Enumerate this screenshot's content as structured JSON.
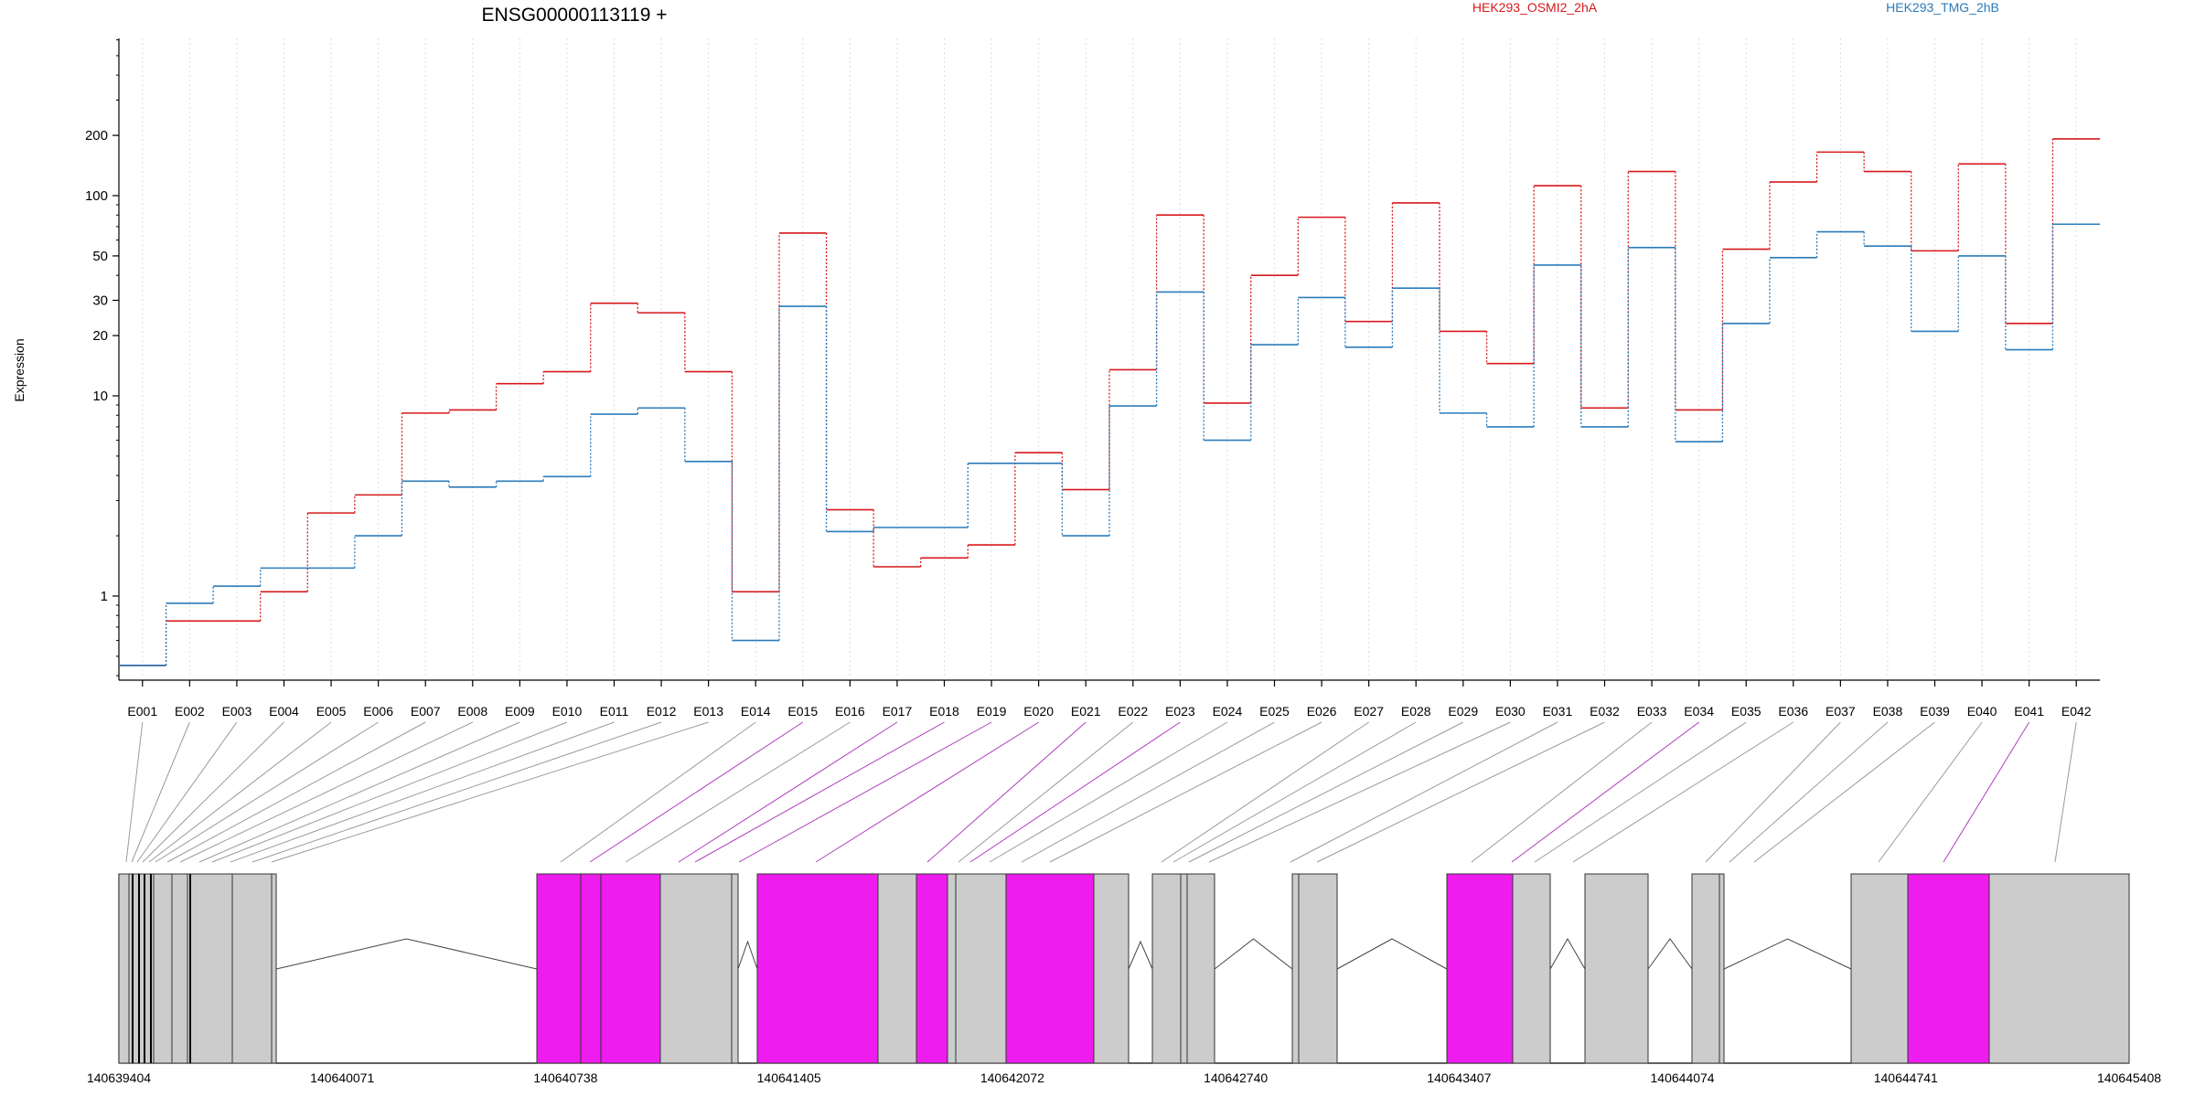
{
  "chart_data": {
    "type": "line",
    "title": "ENSG00000113119 +",
    "ylabel": "Expression",
    "y_scale": "log",
    "y_ticks": [
      1,
      10,
      20,
      30,
      50,
      100,
      200
    ],
    "y_tick_labels": [
      "1",
      "10",
      "20",
      "30",
      "50",
      "100",
      "200"
    ],
    "categories": [
      "E001",
      "E002",
      "E003",
      "E004",
      "E005",
      "E006",
      "E007",
      "E008",
      "E009",
      "E010",
      "E011",
      "E012",
      "E013",
      "E014",
      "E015",
      "E016",
      "E017",
      "E018",
      "E019",
      "E020",
      "E021",
      "E022",
      "E023",
      "E024",
      "E025",
      "E026",
      "E027",
      "E028",
      "E029",
      "E030",
      "E031",
      "E032",
      "E033",
      "E034",
      "E035",
      "E036",
      "E037",
      "E038",
      "E039",
      "E040",
      "E041",
      "E042"
    ],
    "series": [
      {
        "name": "HEK293_OSMI2_2hA",
        "color": "#d7191c",
        "values": [
          0.45,
          0.75,
          0.75,
          1.05,
          2.6,
          3.2,
          8.2,
          8.5,
          11.5,
          13.2,
          29,
          26,
          13.2,
          1.05,
          65,
          2.7,
          1.4,
          1.55,
          1.8,
          5.2,
          3.4,
          13.5,
          80,
          9.2,
          40,
          78,
          23.5,
          92,
          21,
          14.5,
          112,
          8.7,
          132,
          8.5,
          54,
          117,
          165,
          132,
          53,
          144,
          23,
          192
        ]
      },
      {
        "name": "HEK293_TMG_2hB",
        "color": "#2b7bba",
        "values": [
          0.45,
          0.92,
          1.12,
          1.38,
          1.38,
          2.0,
          3.75,
          3.5,
          3.75,
          3.95,
          8.1,
          8.7,
          4.7,
          0.6,
          28,
          2.1,
          2.2,
          2.2,
          4.6,
          4.6,
          2.0,
          8.9,
          33,
          6.0,
          18,
          31,
          17.5,
          34.5,
          8.2,
          7.0,
          45,
          7.0,
          55,
          5.9,
          23,
          49,
          66,
          56,
          21,
          50,
          17,
          72
        ]
      }
    ],
    "legend_placement": "top",
    "grid": "vertical dotted",
    "gene_model": {
      "coordinates": [
        "140639404",
        "140640071",
        "140640738",
        "140641405",
        "140642072",
        "140642740",
        "140643407",
        "140644074",
        "140644741",
        "140645408"
      ],
      "feature_colors": {
        "exon": "#cccccc",
        "highlighted_exon": "#ee1cee",
        "link": "#9a9a9a",
        "highlighted_link": "#b03cbf"
      },
      "highlighted_exons": [
        "E015",
        "E017",
        "E018",
        "E019",
        "E020",
        "E021",
        "E023",
        "E034",
        "E041"
      ]
    }
  }
}
